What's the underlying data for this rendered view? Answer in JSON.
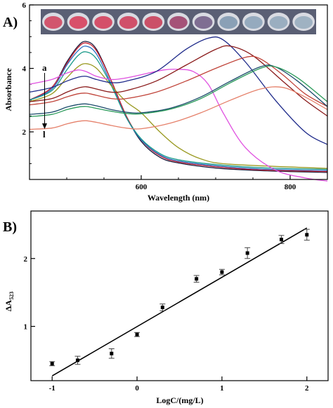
{
  "chart_data": [
    {
      "panel_label": "A)",
      "type": "line",
      "xlabel": "Wavelength (nm)",
      "ylabel": "Absorbance",
      "xlim": [
        450,
        850
      ],
      "ylim": [
        0.5,
        6
      ],
      "x_ticks": [
        600,
        800
      ],
      "y_ticks": [
        2,
        4,
        6
      ],
      "x_minor_step": 50,
      "y_minor_step": 0.5,
      "annotation_top": "a",
      "annotation_bottom": "l",
      "inset": "photo of 11 sample wells with colour changing from red to blue-grey",
      "well_colors": [
        "#d2566e",
        "#d8506a",
        "#d4506a",
        "#d0506a",
        "#cb5068",
        "#a55278",
        "#7f6e92",
        "#8aa0b6",
        "#95aabe",
        "#9aaec0",
        "#9fb2c2"
      ],
      "series": [
        {
          "name": "",
          "color": "#1a1a3a",
          "points": [
            [
              450,
              3.0
            ],
            [
              480,
              3.4
            ],
            [
              500,
              4.2
            ],
            [
              515,
              4.7
            ],
            [
              526,
              4.85
            ],
            [
              540,
              4.6
            ],
            [
              560,
              3.6
            ],
            [
              580,
              2.5
            ],
            [
              600,
              1.7
            ],
            [
              625,
              1.2
            ],
            [
              650,
              1.02
            ],
            [
              700,
              0.86
            ],
            [
              760,
              0.78
            ],
            [
              850,
              0.72
            ]
          ]
        },
        {
          "name": "",
          "color": "#cc2233",
          "points": [
            [
              450,
              3.0
            ],
            [
              480,
              3.4
            ],
            [
              500,
              4.15
            ],
            [
              515,
              4.65
            ],
            [
              526,
              4.8
            ],
            [
              540,
              4.55
            ],
            [
              560,
              3.6
            ],
            [
              580,
              2.5
            ],
            [
              600,
              1.75
            ],
            [
              625,
              1.25
            ],
            [
              650,
              1.05
            ],
            [
              700,
              0.9
            ],
            [
              760,
              0.8
            ],
            [
              850,
              0.75
            ]
          ]
        },
        {
          "name": "",
          "color": "#2a6fc4",
          "points": [
            [
              450,
              3.0
            ],
            [
              480,
              3.35
            ],
            [
              500,
              4.1
            ],
            [
              515,
              4.55
            ],
            [
              526,
              4.7
            ],
            [
              540,
              4.45
            ],
            [
              560,
              3.5
            ],
            [
              580,
              2.45
            ],
            [
              600,
              1.75
            ],
            [
              625,
              1.28
            ],
            [
              650,
              1.08
            ],
            [
              700,
              0.93
            ],
            [
              760,
              0.83
            ],
            [
              850,
              0.78
            ]
          ]
        },
        {
          "name": "",
          "color": "#1a9a8a",
          "points": [
            [
              450,
              3.0
            ],
            [
              480,
              3.3
            ],
            [
              500,
              3.95
            ],
            [
              515,
              4.4
            ],
            [
              526,
              4.52
            ],
            [
              540,
              4.3
            ],
            [
              560,
              3.45
            ],
            [
              580,
              2.45
            ],
            [
              600,
              1.78
            ],
            [
              625,
              1.32
            ],
            [
              650,
              1.12
            ],
            [
              700,
              0.97
            ],
            [
              760,
              0.87
            ],
            [
              850,
              0.82
            ]
          ]
        },
        {
          "name": "",
          "color": "#9a9a22",
          "points": [
            [
              450,
              2.95
            ],
            [
              480,
              3.2
            ],
            [
              500,
              3.7
            ],
            [
              515,
              4.05
            ],
            [
              526,
              4.15
            ],
            [
              540,
              4.0
            ],
            [
              560,
              3.45
            ],
            [
              580,
              2.95
            ],
            [
              600,
              2.6
            ],
            [
              625,
              2.0
            ],
            [
              650,
              1.5
            ],
            [
              680,
              1.15
            ],
            [
              720,
              0.98
            ],
            [
              850,
              0.85
            ]
          ]
        },
        {
          "name": "",
          "color": "#e050e0",
          "points": [
            [
              450,
              3.5
            ],
            [
              480,
              3.65
            ],
            [
              500,
              3.85
            ],
            [
              515,
              3.95
            ],
            [
              526,
              3.9
            ],
            [
              540,
              3.75
            ],
            [
              560,
              3.65
            ],
            [
              580,
              3.7
            ],
            [
              600,
              3.8
            ],
            [
              630,
              3.95
            ],
            [
              650,
              3.97
            ],
            [
              670,
              3.9
            ],
            [
              690,
              3.5
            ],
            [
              710,
              2.6
            ],
            [
              740,
              1.5
            ],
            [
              780,
              0.8
            ],
            [
              820,
              0.55
            ],
            [
              850,
              0.45
            ]
          ]
        },
        {
          "name": "",
          "color": "#1e2a8a",
          "points": [
            [
              450,
              3.25
            ],
            [
              480,
              3.4
            ],
            [
              500,
              3.6
            ],
            [
              515,
              3.72
            ],
            [
              526,
              3.75
            ],
            [
              540,
              3.65
            ],
            [
              560,
              3.55
            ],
            [
              580,
              3.6
            ],
            [
              620,
              3.9
            ],
            [
              660,
              4.6
            ],
            [
              690,
              4.95
            ],
            [
              710,
              4.9
            ],
            [
              740,
              4.2
            ],
            [
              780,
              3.0
            ],
            [
              820,
              2.0
            ],
            [
              850,
              1.6
            ]
          ]
        },
        {
          "name": "",
          "color": "#8a1a1a",
          "points": [
            [
              450,
              2.95
            ],
            [
              480,
              3.05
            ],
            [
              500,
              3.25
            ],
            [
              515,
              3.38
            ],
            [
              526,
              3.42
            ],
            [
              540,
              3.35
            ],
            [
              560,
              3.25
            ],
            [
              580,
              3.3
            ],
            [
              620,
              3.6
            ],
            [
              660,
              4.1
            ],
            [
              700,
              4.6
            ],
            [
              720,
              4.7
            ],
            [
              750,
              4.4
            ],
            [
              790,
              3.6
            ],
            [
              820,
              3.0
            ],
            [
              850,
              2.5
            ]
          ]
        },
        {
          "name": "",
          "color": "#c0443a",
          "points": [
            [
              450,
              2.85
            ],
            [
              480,
              2.95
            ],
            [
              500,
              3.1
            ],
            [
              515,
              3.2
            ],
            [
              526,
              3.22
            ],
            [
              540,
              3.15
            ],
            [
              560,
              3.05
            ],
            [
              580,
              3.05
            ],
            [
              620,
              3.25
            ],
            [
              660,
              3.6
            ],
            [
              700,
              4.0
            ],
            [
              740,
              4.35
            ],
            [
              760,
              4.3
            ],
            [
              790,
              3.8
            ],
            [
              820,
              3.2
            ],
            [
              850,
              2.8
            ]
          ]
        },
        {
          "name": "",
          "color": "#1a4a6a",
          "points": [
            [
              450,
              2.55
            ],
            [
              480,
              2.62
            ],
            [
              500,
              2.78
            ],
            [
              515,
              2.86
            ],
            [
              526,
              2.88
            ],
            [
              540,
              2.82
            ],
            [
              560,
              2.7
            ],
            [
              580,
              2.62
            ],
            [
              600,
              2.6
            ],
            [
              640,
              2.75
            ],
            [
              680,
              3.1
            ],
            [
              720,
              3.6
            ],
            [
              760,
              4.05
            ],
            [
              780,
              4.05
            ],
            [
              810,
              3.6
            ],
            [
              850,
              2.8
            ]
          ]
        },
        {
          "name": "",
          "color": "#2a9a5a",
          "points": [
            [
              450,
              2.48
            ],
            [
              480,
              2.55
            ],
            [
              500,
              2.7
            ],
            [
              515,
              2.78
            ],
            [
              526,
              2.8
            ],
            [
              540,
              2.74
            ],
            [
              560,
              2.65
            ],
            [
              580,
              2.58
            ],
            [
              600,
              2.57
            ],
            [
              640,
              2.72
            ],
            [
              680,
              3.05
            ],
            [
              720,
              3.55
            ],
            [
              760,
              4.0
            ],
            [
              780,
              4.05
            ],
            [
              810,
              3.7
            ],
            [
              850,
              2.95
            ]
          ]
        },
        {
          "name": "",
          "color": "#e5806a",
          "points": [
            [
              450,
              2.08
            ],
            [
              480,
              2.12
            ],
            [
              500,
              2.25
            ],
            [
              515,
              2.33
            ],
            [
              526,
              2.35
            ],
            [
              540,
              2.3
            ],
            [
              560,
              2.2
            ],
            [
              580,
              2.12
            ],
            [
              600,
              2.1
            ],
            [
              640,
              2.28
            ],
            [
              680,
              2.6
            ],
            [
              720,
              3.0
            ],
            [
              760,
              3.35
            ],
            [
              790,
              3.4
            ],
            [
              820,
              3.1
            ],
            [
              850,
              2.7
            ]
          ]
        }
      ]
    },
    {
      "panel_label": "B)",
      "type": "scatter",
      "xlabel": "LogC/(mg/L)",
      "ylabel": "ΔA",
      "ylabel_subscript": "523",
      "xlim": [
        -1.25,
        2.25
      ],
      "ylim": [
        0.2,
        2.7
      ],
      "x_ticks": [
        -1,
        0,
        1,
        2
      ],
      "y_ticks": [
        1,
        2
      ],
      "points": [
        {
          "x": -1.0,
          "y": 0.45,
          "err": 0.03
        },
        {
          "x": -0.7,
          "y": 0.5,
          "err": 0.06
        },
        {
          "x": -0.3,
          "y": 0.6,
          "err": 0.07
        },
        {
          "x": 0.0,
          "y": 0.88,
          "err": 0.03
        },
        {
          "x": 0.3,
          "y": 1.28,
          "err": 0.05
        },
        {
          "x": 0.7,
          "y": 1.7,
          "err": 0.05
        },
        {
          "x": 1.0,
          "y": 1.8,
          "err": 0.04
        },
        {
          "x": 1.3,
          "y": 2.08,
          "err": 0.08
        },
        {
          "x": 1.7,
          "y": 2.28,
          "err": 0.06
        },
        {
          "x": 2.0,
          "y": 2.35,
          "err": 0.08
        }
      ],
      "fit": {
        "x": [
          -1.0,
          2.0
        ],
        "y": [
          0.27,
          2.45
        ]
      }
    }
  ]
}
